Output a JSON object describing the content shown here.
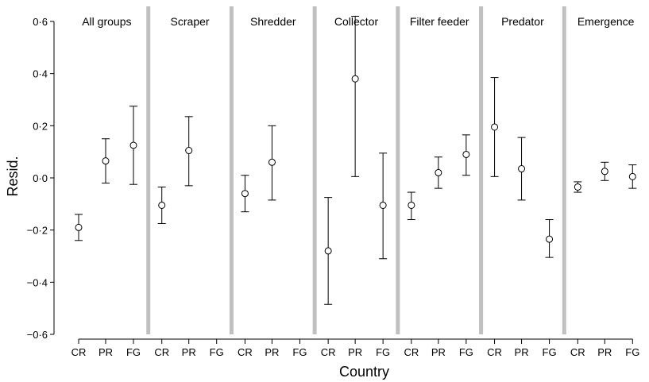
{
  "chart_data": {
    "type": "scatter",
    "subtype": "dot-with-error-bars, faceted panels",
    "ylabel": "Resid.",
    "xlabel": "Country",
    "ylim": [
      -0.6,
      0.6
    ],
    "yticks": [
      "0·6",
      "0·4",
      "0·2",
      "0·0",
      "−0·2",
      "−0·4",
      "−0·6"
    ],
    "ytick_values": [
      0.6,
      0.4,
      0.2,
      0.0,
      -0.2,
      -0.4,
      -0.6
    ],
    "categories": [
      "CR",
      "PR",
      "FG"
    ],
    "grid": false,
    "panels": [
      {
        "name": "All groups",
        "points": [
          {
            "x": "CR",
            "y": -0.19,
            "lower": -0.24,
            "upper": -0.14
          },
          {
            "x": "PR",
            "y": 0.065,
            "lower": -0.02,
            "upper": 0.15
          },
          {
            "x": "FG",
            "y": 0.125,
            "lower": -0.025,
            "upper": 0.275
          }
        ]
      },
      {
        "name": "Scraper",
        "points": [
          {
            "x": "CR",
            "y": -0.105,
            "lower": -0.175,
            "upper": -0.035
          },
          {
            "x": "PR",
            "y": 0.105,
            "lower": -0.03,
            "upper": 0.235
          }
        ]
      },
      {
        "name": "Shredder",
        "points": [
          {
            "x": "CR",
            "y": -0.06,
            "lower": -0.13,
            "upper": 0.01
          },
          {
            "x": "PR",
            "y": 0.06,
            "lower": -0.085,
            "upper": 0.2
          }
        ]
      },
      {
        "name": "Collector",
        "points": [
          {
            "x": "CR",
            "y": -0.28,
            "lower": -0.485,
            "upper": -0.075
          },
          {
            "x": "PR",
            "y": 0.38,
            "lower": 0.005,
            "upper": 0.62
          },
          {
            "x": "FG",
            "y": -0.105,
            "lower": -0.31,
            "upper": 0.095
          }
        ]
      },
      {
        "name": "Filter feeder",
        "points": [
          {
            "x": "CR",
            "y": -0.105,
            "lower": -0.16,
            "upper": -0.055
          },
          {
            "x": "PR",
            "y": 0.02,
            "lower": -0.04,
            "upper": 0.08
          },
          {
            "x": "FG",
            "y": 0.09,
            "lower": 0.01,
            "upper": 0.165
          }
        ]
      },
      {
        "name": "Predator",
        "points": [
          {
            "x": "CR",
            "y": 0.195,
            "lower": 0.005,
            "upper": 0.385
          },
          {
            "x": "PR",
            "y": 0.035,
            "lower": -0.085,
            "upper": 0.155
          },
          {
            "x": "FG",
            "y": -0.235,
            "lower": -0.305,
            "upper": -0.16
          }
        ]
      },
      {
        "name": "Emergence",
        "points": [
          {
            "x": "CR",
            "y": -0.035,
            "lower": -0.055,
            "upper": -0.015
          },
          {
            "x": "PR",
            "y": 0.025,
            "lower": -0.01,
            "upper": 0.06
          },
          {
            "x": "FG",
            "y": 0.005,
            "lower": -0.04,
            "upper": 0.05
          }
        ]
      }
    ],
    "colors": {
      "marker": "#000000",
      "separator": "#c0c0c0",
      "axis": "#000000"
    }
  }
}
